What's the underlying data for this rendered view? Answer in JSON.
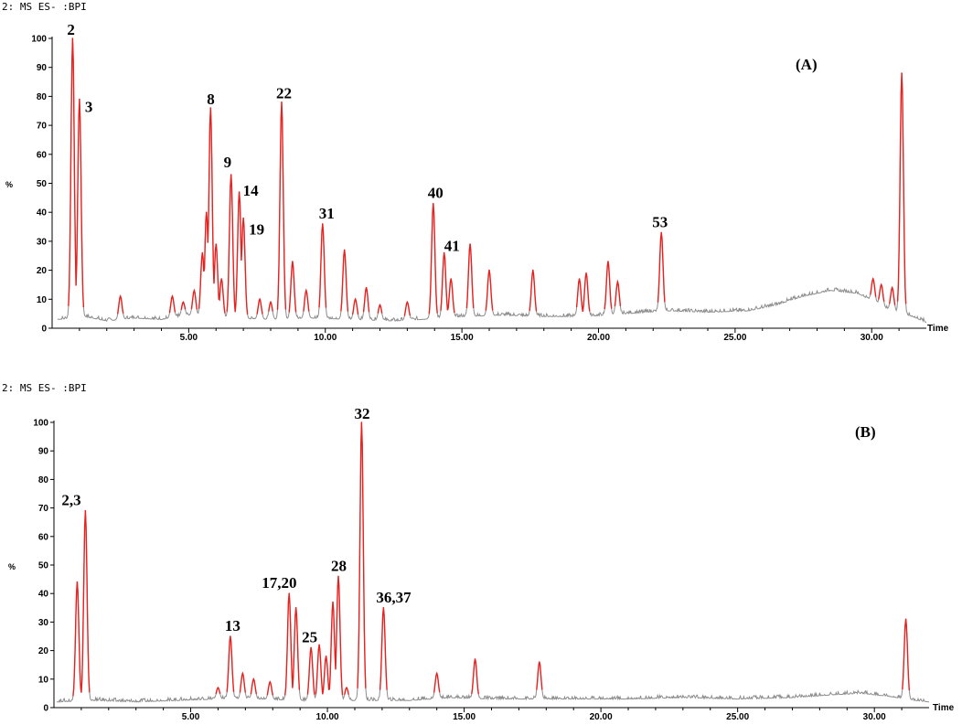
{
  "chart_data": [
    {
      "type": "line",
      "panel_label": "(A)",
      "header": "2: MS ES- :BPI",
      "ylabel": "%",
      "xlabel": "Time",
      "xlim": [
        0,
        32
      ],
      "ylim": [
        0,
        100
      ],
      "y_ticks": [
        "0",
        "10",
        "20",
        "30",
        "40",
        "50",
        "60",
        "70",
        "80",
        "90",
        "100"
      ],
      "x_ticks": [
        "5.00",
        "10.00",
        "15.00",
        "20.00",
        "25.00",
        "30.00"
      ],
      "colors": {
        "baseline": "#8c8c8c",
        "peaks": "#e8211f"
      },
      "baseline_points": [
        [
          0.2,
          3
        ],
        [
          1.2,
          4
        ],
        [
          2.0,
          2.5
        ],
        [
          3.0,
          3.5
        ],
        [
          4.0,
          3
        ],
        [
          5.0,
          4.5
        ],
        [
          6.5,
          3.5
        ],
        [
          8.0,
          3
        ],
        [
          9.5,
          3.5
        ],
        [
          11.0,
          3
        ],
        [
          12.5,
          2.5
        ],
        [
          13.5,
          3
        ],
        [
          15.0,
          4
        ],
        [
          16.5,
          4.5
        ],
        [
          18.0,
          4
        ],
        [
          19.5,
          4
        ],
        [
          21.0,
          5
        ],
        [
          22.5,
          6
        ],
        [
          24.0,
          5.5
        ],
        [
          25.5,
          6
        ],
        [
          26.5,
          8
        ],
        [
          27.5,
          11
        ],
        [
          28.5,
          13
        ],
        [
          29.5,
          12
        ],
        [
          30.5,
          7
        ],
        [
          31.5,
          4
        ],
        [
          32.0,
          2
        ]
      ],
      "peaks": [
        {
          "rt": 0.75,
          "height": 100,
          "label": "2"
        },
        {
          "rt": 1.0,
          "height": 79,
          "label": "3"
        },
        {
          "rt": 2.5,
          "height": 11,
          "label": ""
        },
        {
          "rt": 4.4,
          "height": 11,
          "label": ""
        },
        {
          "rt": 4.8,
          "height": 9,
          "label": ""
        },
        {
          "rt": 5.2,
          "height": 13,
          "label": ""
        },
        {
          "rt": 5.5,
          "height": 26,
          "label": ""
        },
        {
          "rt": 5.65,
          "height": 40,
          "label": ""
        },
        {
          "rt": 5.8,
          "height": 76,
          "label": "8"
        },
        {
          "rt": 6.0,
          "height": 29,
          "label": ""
        },
        {
          "rt": 6.2,
          "height": 17,
          "label": ""
        },
        {
          "rt": 6.55,
          "height": 53,
          "label": "9"
        },
        {
          "rt": 6.85,
          "height": 47,
          "label": "14"
        },
        {
          "rt": 7.0,
          "height": 38,
          "label": "19"
        },
        {
          "rt": 7.6,
          "height": 10,
          "label": ""
        },
        {
          "rt": 8.0,
          "height": 9,
          "label": ""
        },
        {
          "rt": 8.4,
          "height": 78,
          "label": "22"
        },
        {
          "rt": 8.8,
          "height": 23,
          "label": ""
        },
        {
          "rt": 9.3,
          "height": 13,
          "label": ""
        },
        {
          "rt": 9.9,
          "height": 36,
          "label": "31"
        },
        {
          "rt": 10.7,
          "height": 27,
          "label": ""
        },
        {
          "rt": 11.1,
          "height": 10,
          "label": ""
        },
        {
          "rt": 11.5,
          "height": 14,
          "label": ""
        },
        {
          "rt": 12.0,
          "height": 8,
          "label": ""
        },
        {
          "rt": 13.0,
          "height": 9,
          "label": ""
        },
        {
          "rt": 13.95,
          "height": 43,
          "label": "40"
        },
        {
          "rt": 14.35,
          "height": 26,
          "label": "41"
        },
        {
          "rt": 14.6,
          "height": 17,
          "label": ""
        },
        {
          "rt": 15.3,
          "height": 29,
          "label": ""
        },
        {
          "rt": 16.0,
          "height": 20,
          "label": ""
        },
        {
          "rt": 17.6,
          "height": 20,
          "label": ""
        },
        {
          "rt": 19.3,
          "height": 17,
          "label": ""
        },
        {
          "rt": 19.55,
          "height": 19,
          "label": ""
        },
        {
          "rt": 20.35,
          "height": 23,
          "label": ""
        },
        {
          "rt": 20.7,
          "height": 16,
          "label": ""
        },
        {
          "rt": 22.3,
          "height": 33,
          "label": "53"
        },
        {
          "rt": 30.05,
          "height": 17,
          "label": ""
        },
        {
          "rt": 30.35,
          "height": 15,
          "label": ""
        },
        {
          "rt": 30.75,
          "height": 14,
          "label": ""
        },
        {
          "rt": 31.1,
          "height": 88,
          "label": ""
        }
      ]
    },
    {
      "type": "line",
      "panel_label": "(B)",
      "header": "2: MS ES- :BPI",
      "ylabel": "%",
      "xlabel": "Time",
      "xlim": [
        0,
        32
      ],
      "ylim": [
        0,
        100
      ],
      "y_ticks": [
        "0",
        "10",
        "20",
        "30",
        "40",
        "50",
        "60",
        "70",
        "80",
        "90",
        "100"
      ],
      "x_ticks": [
        "5.00",
        "10.00",
        "15.00",
        "20.00",
        "25.00",
        "30.00"
      ],
      "colors": {
        "baseline": "#8c8c8c",
        "peaks": "#e8211f"
      },
      "baseline_points": [
        [
          0.1,
          2
        ],
        [
          1.5,
          2.5
        ],
        [
          3.0,
          2
        ],
        [
          4.5,
          2.5
        ],
        [
          6.0,
          3
        ],
        [
          7.5,
          3
        ],
        [
          9.0,
          2.5
        ],
        [
          11.0,
          2.5
        ],
        [
          13.0,
          2.5
        ],
        [
          14.5,
          3.5
        ],
        [
          16.0,
          3
        ],
        [
          17.5,
          3
        ],
        [
          19.0,
          3
        ],
        [
          21.0,
          3
        ],
        [
          23.0,
          3.5
        ],
        [
          25.0,
          3
        ],
        [
          27.0,
          3.5
        ],
        [
          28.5,
          4.5
        ],
        [
          29.5,
          5
        ],
        [
          30.5,
          4
        ],
        [
          31.5,
          2.5
        ],
        [
          32.0,
          2
        ]
      ],
      "peaks": [
        {
          "rt": 0.85,
          "height": 44,
          "label": ""
        },
        {
          "rt": 1.15,
          "height": 69,
          "label": "2,3"
        },
        {
          "rt": 6.0,
          "height": 7,
          "label": ""
        },
        {
          "rt": 6.45,
          "height": 25,
          "label": "13"
        },
        {
          "rt": 6.9,
          "height": 12,
          "label": ""
        },
        {
          "rt": 7.3,
          "height": 10,
          "label": ""
        },
        {
          "rt": 7.9,
          "height": 9,
          "label": ""
        },
        {
          "rt": 8.6,
          "height": 40,
          "label": "17,20"
        },
        {
          "rt": 8.85,
          "height": 35,
          "label": ""
        },
        {
          "rt": 9.4,
          "height": 21,
          "label": "25"
        },
        {
          "rt": 9.7,
          "height": 22,
          "label": ""
        },
        {
          "rt": 9.95,
          "height": 18,
          "label": ""
        },
        {
          "rt": 10.2,
          "height": 37,
          "label": ""
        },
        {
          "rt": 10.4,
          "height": 46,
          "label": "28"
        },
        {
          "rt": 10.7,
          "height": 7,
          "label": ""
        },
        {
          "rt": 11.25,
          "height": 100,
          "label": "32"
        },
        {
          "rt": 12.05,
          "height": 35,
          "label": "36,37"
        },
        {
          "rt": 14.0,
          "height": 12,
          "label": ""
        },
        {
          "rt": 15.4,
          "height": 17,
          "label": ""
        },
        {
          "rt": 17.75,
          "height": 16,
          "label": ""
        },
        {
          "rt": 31.15,
          "height": 31,
          "label": ""
        }
      ]
    }
  ]
}
